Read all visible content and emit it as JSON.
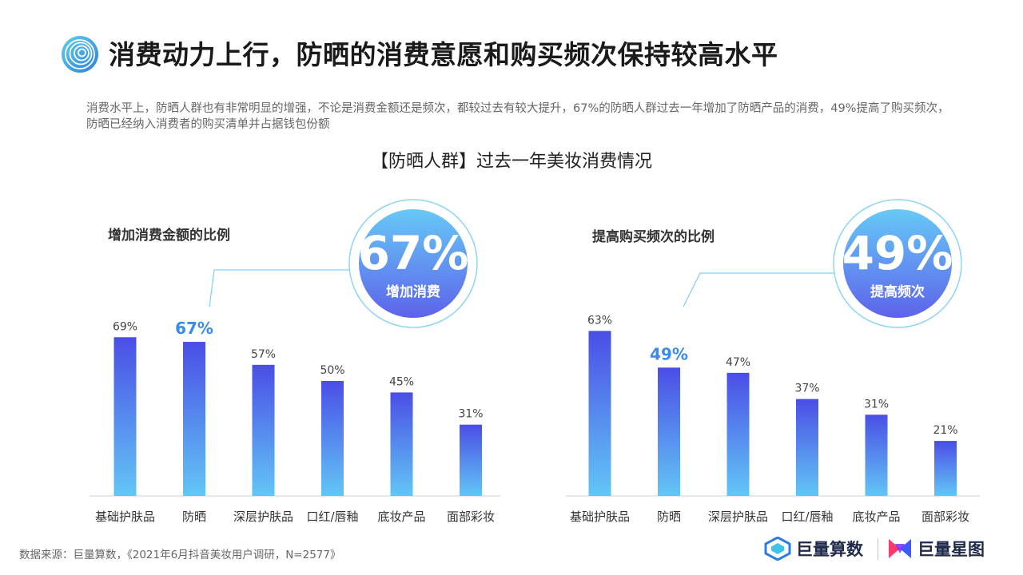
{
  "header": {
    "title": "消费动力上行，防晒的消费意愿和购买频次保持较高水平",
    "description": "消费水平上，防晒人群也有非常明显的增强，不论是消费金额还是频次，都较过去有较大提升，67%的防晒人群过去一年增加了防晒产品的消费，49%提高了购买频次，防晒已经纳入消费者的购买清单并占据钱包份额"
  },
  "chart_heading": "【防晒人群】过去一年美妆消费情况",
  "chart_data": [
    {
      "type": "bar",
      "title": "增加消费金额的比例",
      "categories": [
        "基础护肤品",
        "防晒",
        "深层护肤品",
        "口红/唇釉",
        "底妆产品",
        "面部彩妆"
      ],
      "values": [
        69,
        67,
        57,
        50,
        45,
        31
      ],
      "data_labels": [
        "69%",
        "67%",
        "57%",
        "50%",
        "45%",
        "31%"
      ],
      "highlight_index": 1,
      "ylim": [
        0,
        100
      ],
      "callout": {
        "value": "67%",
        "label": "增加消费"
      }
    },
    {
      "type": "bar",
      "title": "提高购买频次的比例",
      "categories": [
        "基础护肤品",
        "防晒",
        "深层护肤品",
        "口红/唇釉",
        "底妆产品",
        "面部彩妆"
      ],
      "values": [
        63,
        49,
        47,
        37,
        31,
        21
      ],
      "data_labels": [
        "63%",
        "49%",
        "47%",
        "37%",
        "31%",
        "21%"
      ],
      "highlight_index": 1,
      "ylim": [
        0,
        100
      ],
      "callout": {
        "value": "49%",
        "label": "提高频次"
      }
    }
  ],
  "footer": {
    "source": "数据来源：巨量算数，《2021年6月抖音美妆用户调研，N=2577》",
    "brand_1": "巨量算数",
    "brand_2": "巨量星图"
  },
  "colors": {
    "bar_top": "#4a4ee6",
    "bar_bottom": "#62c6f5",
    "highlight": "#3b8bea",
    "bubble_top": "#66c9f7",
    "bubble_bottom": "#5d63ea"
  }
}
